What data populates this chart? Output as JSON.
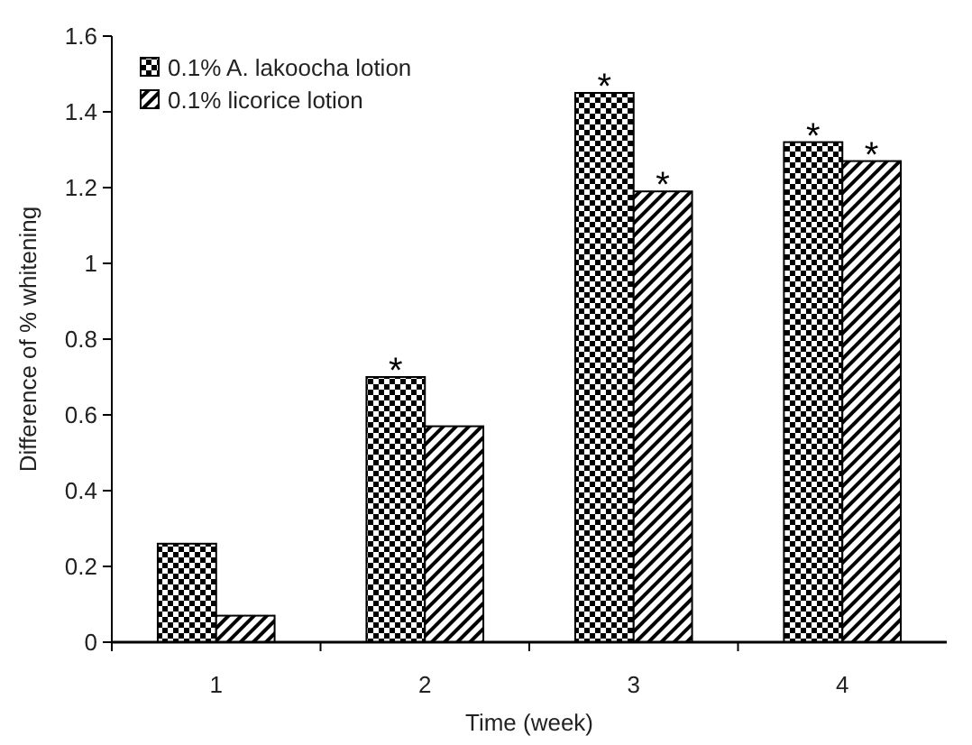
{
  "chart_data": {
    "type": "bar",
    "xlabel": "Time (week)",
    "ylabel": "Difference of % whitening",
    "categories": [
      "1",
      "2",
      "3",
      "4"
    ],
    "series": [
      {
        "name": "0.1% A. lakoocha lotion",
        "color": "#000000",
        "values": [
          0.26,
          0.7,
          1.45,
          1.32
        ]
      },
      {
        "name": "0.1% licorice lotion",
        "color": "#000000",
        "values": [
          0.07,
          0.57,
          1.19,
          1.27
        ]
      }
    ],
    "ylim": [
      0,
      1.6
    ],
    "yticks": [
      0,
      0.2,
      0.4,
      0.6,
      0.8,
      1,
      1.2,
      1.4,
      1.6
    ],
    "grid": false,
    "legend": "top left",
    "annotations": [
      {
        "text": "*",
        "x": "2",
        "y": 0.7
      },
      {
        "text": "*",
        "x": "3",
        "y": 1.45
      },
      {
        "text": "*",
        "x": "3",
        "y": 1.19
      },
      {
        "text": "*",
        "x": "4",
        "y": 1.32
      },
      {
        "text": "*",
        "x": "4",
        "y": 1.27
      }
    ]
  }
}
